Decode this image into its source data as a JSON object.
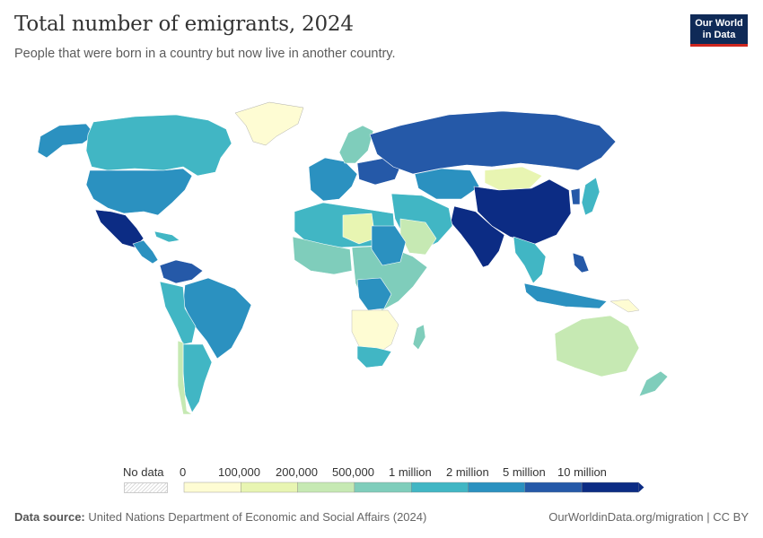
{
  "title": "Total number of emigrants, 2024",
  "subtitle": "People that were born in a country but now live in another country.",
  "logo": {
    "line1": "Our World",
    "line2": "in Data"
  },
  "legend": {
    "no_data_label": "No data",
    "bins": [
      {
        "label": "0",
        "color": "#fefcd3"
      },
      {
        "label": "100,000",
        "color": "#e8f5b2"
      },
      {
        "label": "200,000",
        "color": "#c6e9b3"
      },
      {
        "label": "500,000",
        "color": "#7fcdbb"
      },
      {
        "label": "1 million",
        "color": "#41b6c4"
      },
      {
        "label": "2 million",
        "color": "#2b91c0"
      },
      {
        "label": "5 million",
        "color": "#2559a8"
      },
      {
        "label": "10 million",
        "color": "#0c2c84"
      }
    ]
  },
  "footer": {
    "source_prefix": "Data source:",
    "source_text": "United Nations Department of Economic and Social Affairs (2024)",
    "right": "OurWorldinData.org/migration | CC BY"
  }
}
